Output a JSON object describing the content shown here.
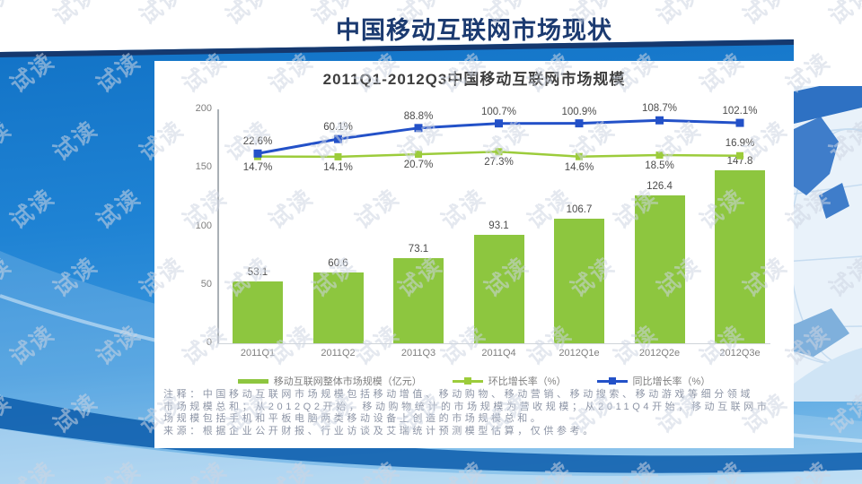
{
  "slide": {
    "title": "中国移动互联网市场现状"
  },
  "watermark": {
    "text": "试读"
  },
  "chart_data": {
    "type": "bar",
    "title": "2011Q1-2012Q3中国移动互联网市场规模",
    "categories": [
      "2011Q1",
      "2011Q2",
      "2011Q3",
      "2011Q4",
      "2012Q1e",
      "2012Q2e",
      "2012Q3e"
    ],
    "series": [
      {
        "name": "移动互联网整体市场规模（亿元）",
        "type": "bar",
        "color": "#8dc63f",
        "values": [
          53.1,
          60.6,
          73.1,
          93.1,
          106.7,
          126.4,
          147.8
        ],
        "labels": [
          "53.1",
          "60.6",
          "73.1",
          "93.1",
          "106.7",
          "126.4",
          "147.8"
        ]
      },
      {
        "name": "环比增长率（%）",
        "type": "line",
        "color": "#9ccc3b",
        "values": [
          14.7,
          14.1,
          20.7,
          27.3,
          14.6,
          18.5,
          16.9
        ],
        "labels": [
          "14.7%",
          "14.1%",
          "20.7%",
          "27.3%",
          "14.6%",
          "18.5%",
          "16.9%"
        ]
      },
      {
        "name": "同比增长率（%）",
        "type": "line",
        "color": "#2351c8",
        "values": [
          22.6,
          60.1,
          88.8,
          100.7,
          100.9,
          108.7,
          102.1
        ],
        "labels": [
          "22.6%",
          "60.1%",
          "88.8%",
          "100.7%",
          "100.9%",
          "108.7%",
          "102.1%"
        ]
      }
    ],
    "y_axis": {
      "ticks": [
        0,
        50,
        100,
        150,
        200
      ],
      "max": 200,
      "min": 0
    },
    "xlabel": "",
    "ylabel": "",
    "grid": false,
    "legend_position": "bottom"
  },
  "notes": {
    "lines": [
      "注释：中国移动互联网市场规模包括移动增值、移动购物、移动营销、移动搜索、移动游戏等细分领域",
      "市场规模总和；从2012Q2开始，移动购物统计的市场规模为营收规模；从2011Q4开始，移动互联网市",
      "场规模包括手机和平板电脑两类移动设备上创造的市场规模总和。",
      "来源：根据企业公开财报、行业访谈及艾瑞统计预测模型估算，仅供参考。"
    ]
  },
  "colors": {
    "slide_title": "#1b3a70",
    "bar": "#8dc63f",
    "qoq_line": "#9ccc3b",
    "yoy_line": "#2351c8",
    "top_stripe": "#15386e",
    "background_blue": "#1f83d4"
  }
}
